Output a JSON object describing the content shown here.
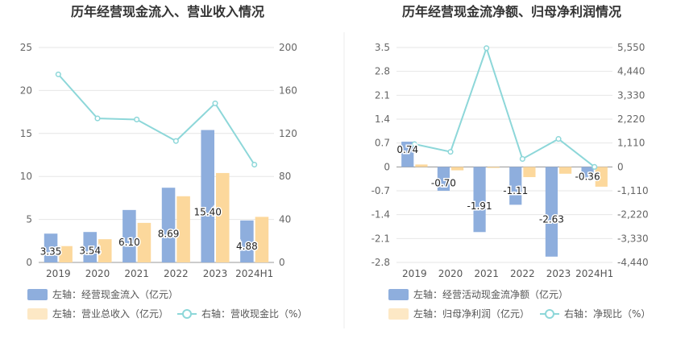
{
  "colors": {
    "cash_bar": "#8eaedd",
    "revenue_bar": "#fcd89c",
    "profit_bar": "#fcd89c",
    "ratio_line": "#8dd7d9",
    "grid": "#e6e6e6",
    "divider": "#eeeeee"
  },
  "chart_data": [
    {
      "type": "bar",
      "title": "历年经营现金流入、营业收入情况",
      "categories": [
        "2019",
        "2020",
        "2021",
        "2022",
        "2023",
        "2024H1"
      ],
      "left_axis": {
        "ticks": [
          "0",
          "5",
          "10",
          "15",
          "20",
          "25"
        ],
        "ylim": [
          0,
          25
        ]
      },
      "right_axis": {
        "ticks": [
          "0",
          "40",
          "80",
          "120",
          "160",
          "200"
        ],
        "ylim": [
          0,
          200
        ]
      },
      "series": [
        {
          "name": "左轴：经营现金流入（亿元）",
          "axis": "left",
          "type": "bar",
          "values": [
            3.35,
            3.54,
            6.1,
            8.69,
            15.4,
            4.88
          ],
          "labels": [
            "3.35",
            "3.54",
            "6.10",
            "8.69",
            "15.40",
            "4.88"
          ]
        },
        {
          "name": "左轴：营业总收入（亿元）",
          "axis": "left",
          "type": "bar",
          "values": [
            1.9,
            2.7,
            4.6,
            7.7,
            10.4,
            5.3
          ]
        },
        {
          "name": "右轴：营收现金比（%）",
          "axis": "right",
          "type": "line",
          "values": [
            175,
            134,
            133,
            113,
            148,
            91
          ]
        }
      ]
    },
    {
      "type": "bar",
      "title": "历年经营现金流净额、归母净利润情况",
      "categories": [
        "2019",
        "2020",
        "2021",
        "2022",
        "2023",
        "2024H1"
      ],
      "left_axis": {
        "ticks": [
          "-2.8",
          "-2.1",
          "-1.4",
          "-0.7",
          "0",
          "0.7",
          "1.4",
          "2.1",
          "2.8",
          "3.5"
        ],
        "ylim": [
          -2.8,
          3.5
        ]
      },
      "right_axis": {
        "ticks": [
          "-4,440",
          "-3,330",
          "-2,220",
          "-1,110",
          "0",
          "1,110",
          "2,220",
          "3,330",
          "4,440",
          "5,550"
        ],
        "ylim": [
          -4440,
          5550
        ]
      },
      "series": [
        {
          "name": "左轴：经营活动现金流净额（亿元）",
          "axis": "left",
          "type": "bar",
          "values": [
            0.74,
            -0.7,
            -1.91,
            -1.11,
            -2.63,
            -0.36
          ],
          "labels": [
            "0.74",
            "-0.70",
            "-1.91",
            "-1.11",
            "-2.63",
            "-0.36"
          ]
        },
        {
          "name": "左轴：归母净利润（亿元）",
          "axis": "left",
          "type": "bar",
          "values": [
            0.07,
            -0.1,
            -0.03,
            -0.3,
            -0.2,
            -0.58
          ]
        },
        {
          "name": "右轴：净现比（%）",
          "axis": "right",
          "type": "line",
          "values": [
            1060,
            700,
            5520,
            370,
            1300,
            0
          ]
        }
      ]
    }
  ]
}
